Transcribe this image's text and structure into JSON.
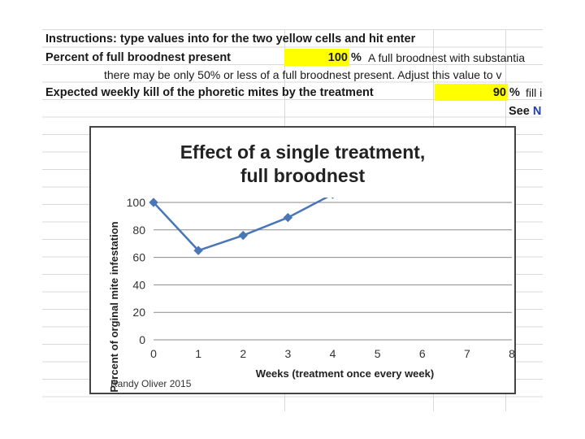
{
  "sheet": {
    "instructions": "Instructions: type values into for the two yellow cells and hit enter",
    "brood_label": "Percent of full broodnest present",
    "brood_value": "100",
    "brood_unit": "%",
    "brood_note": "A full broodnest with substantia",
    "brood_note2": "there may be only 50% or less of a full broodnest present.  Adjust this value to v",
    "kill_label": "Expected weekly kill of the phoretic mites by the treatment",
    "kill_value": "90",
    "kill_unit": "%",
    "kill_note": "fill i",
    "see_label": "See",
    "see_link": "N"
  },
  "colors": {
    "yellow": "#ffff00",
    "series": "#4a76b8",
    "link": "#1f3fb5"
  },
  "chart_data": {
    "type": "line",
    "title_lines": [
      "Effect of a single treatment,",
      "full broodnest"
    ],
    "xlabel": "Weeks (treatment once every week)",
    "ylabel": "Percent of orginal mite infestation",
    "x_ticks": [
      "0",
      "1",
      "2",
      "3",
      "4",
      "5",
      "6",
      "7",
      "8"
    ],
    "y_ticks": [
      "0",
      "20",
      "40",
      "60",
      "80",
      "100"
    ],
    "xlim": [
      0,
      8
    ],
    "ylim": [
      0,
      100
    ],
    "grid": "horizontal",
    "series": [
      {
        "x": [
          0,
          1,
          2,
          3,
          4,
          4.4
        ],
        "y": [
          100,
          65,
          76,
          89,
          106,
          110
        ],
        "marker_count": 5
      }
    ],
    "credit": "Randy Oliver 2015"
  }
}
